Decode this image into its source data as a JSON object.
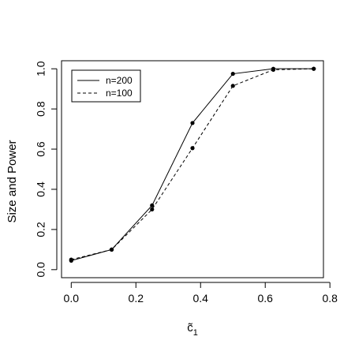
{
  "chart_data": {
    "type": "line",
    "title": "",
    "xlabel": "c̃",
    "xlabel_subscript": "1",
    "ylabel": "Size and Power",
    "xlim": [
      -0.03,
      0.78
    ],
    "ylim": [
      -0.04,
      1.04
    ],
    "xticks": [
      0.0,
      0.2,
      0.4,
      0.6,
      0.8
    ],
    "xtick_labels": [
      "0.0",
      "0.2",
      "0.4",
      "0.6",
      "0.8"
    ],
    "yticks": [
      0.0,
      0.2,
      0.4,
      0.6,
      0.8,
      1.0
    ],
    "ytick_labels": [
      "0.0",
      "0.2",
      "0.4",
      "0.6",
      "0.8",
      "1.0"
    ],
    "grid": false,
    "legend_position": "top-left",
    "series": [
      {
        "name": "n=200",
        "line_style": "solid",
        "color": "#000000",
        "x": [
          0.0,
          0.125,
          0.25,
          0.375,
          0.5,
          0.625,
          0.75
        ],
        "y": [
          0.045,
          0.1,
          0.32,
          0.73,
          0.975,
          1.0,
          1.0
        ]
      },
      {
        "name": "n=100",
        "line_style": "dashed",
        "color": "#000000",
        "x": [
          0.0,
          0.125,
          0.25,
          0.375,
          0.5,
          0.625,
          0.75
        ],
        "y": [
          0.05,
          0.1,
          0.3,
          0.605,
          0.915,
          0.995,
          1.0
        ]
      }
    ]
  }
}
